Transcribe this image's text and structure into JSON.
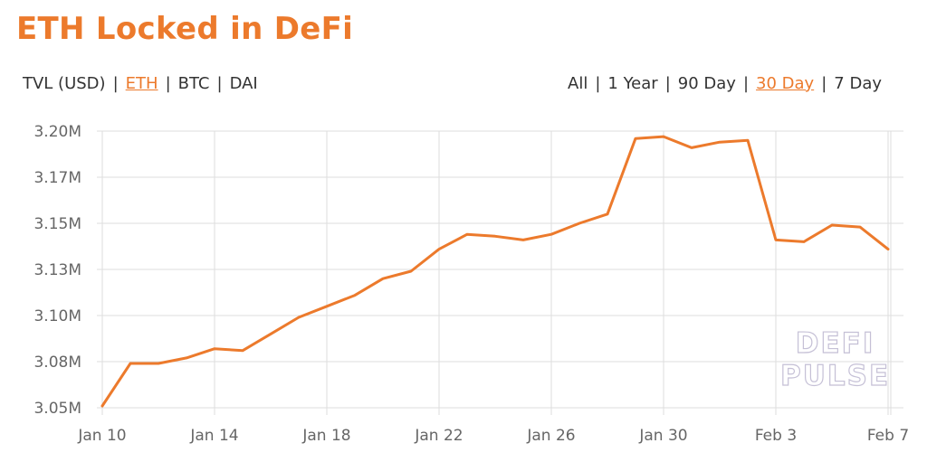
{
  "title": "ETH Locked in DeFi",
  "unit_options": [
    {
      "label": "TVL (USD)",
      "active": false
    },
    {
      "label": "ETH",
      "active": true
    },
    {
      "label": "BTC",
      "active": false
    },
    {
      "label": "DAI",
      "active": false
    }
  ],
  "range_options": [
    {
      "label": "All",
      "active": false
    },
    {
      "label": "1 Year",
      "active": false
    },
    {
      "label": "90 Day",
      "active": false
    },
    {
      "label": "30 Day",
      "active": true
    },
    {
      "label": "7 Day",
      "active": false
    }
  ],
  "watermark": {
    "line1": "DEFI",
    "line2": "PULSE"
  },
  "colors": {
    "accent": "#ec7a2c",
    "grid": "#dddddd",
    "text": "#333333",
    "axis_text": "#666666"
  },
  "chart_data": {
    "type": "line",
    "title": "ETH Locked in DeFi",
    "xlabel": "",
    "ylabel": "",
    "grid": true,
    "ylim": [
      3.05,
      3.2
    ],
    "yticks": [
      3.05,
      3.075,
      3.1,
      3.125,
      3.15,
      3.175,
      3.2
    ],
    "ytick_labels": [
      "3.05M",
      "3.08M",
      "3.10M",
      "3.13M",
      "3.15M",
      "3.17M",
      "3.20M"
    ],
    "xticks": [
      "Jan 10",
      "Jan 14",
      "Jan 18",
      "Jan 22",
      "Jan 26",
      "Jan 30",
      "Feb 3",
      "Feb 7"
    ],
    "x": [
      "Jan 10",
      "Jan 11",
      "Jan 12",
      "Jan 13",
      "Jan 14",
      "Jan 15",
      "Jan 16",
      "Jan 17",
      "Jan 18",
      "Jan 19",
      "Jan 20",
      "Jan 21",
      "Jan 22",
      "Jan 23",
      "Jan 24",
      "Jan 25",
      "Jan 26",
      "Jan 27",
      "Jan 28",
      "Jan 29",
      "Jan 30",
      "Jan 31",
      "Feb 1",
      "Feb 2",
      "Feb 3",
      "Feb 4",
      "Feb 5",
      "Feb 6",
      "Feb 7"
    ],
    "series": [
      {
        "values": [
          3.051,
          3.074,
          3.074,
          3.077,
          3.082,
          3.081,
          3.09,
          3.099,
          3.105,
          3.111,
          3.12,
          3.124,
          3.136,
          3.144,
          3.143,
          3.141,
          3.144,
          3.15,
          3.155,
          3.196,
          3.197,
          3.191,
          3.194,
          3.195,
          3.141,
          3.14,
          3.149,
          3.148,
          3.136
        ],
        "color": "#ec7a2c"
      }
    ]
  }
}
